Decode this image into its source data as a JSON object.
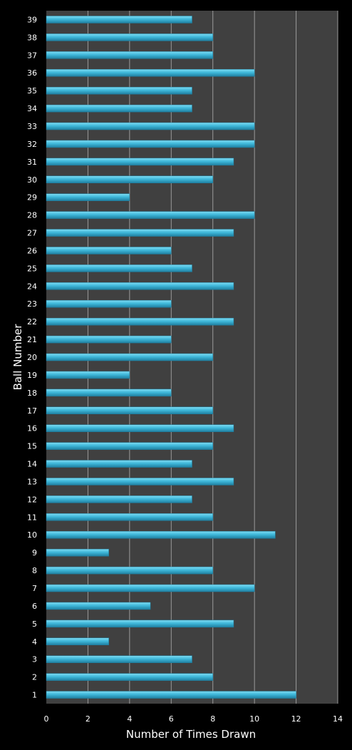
{
  "chart_data": {
    "type": "bar",
    "orientation": "horizontal",
    "title": "",
    "xlabel": "Number of Times Drawn",
    "ylabel": "Ball Number",
    "xlim": [
      0,
      14
    ],
    "xticks": [
      "0",
      "2",
      "4",
      "6",
      "8",
      "10",
      "12",
      "14"
    ],
    "grid": "vertical",
    "legend": "none",
    "categories": [
      "1",
      "2",
      "3",
      "4",
      "5",
      "6",
      "7",
      "8",
      "9",
      "10",
      "11",
      "12",
      "13",
      "14",
      "15",
      "16",
      "17",
      "18",
      "19",
      "20",
      "21",
      "22",
      "23",
      "24",
      "25",
      "26",
      "27",
      "28",
      "29",
      "30",
      "31",
      "32",
      "33",
      "34",
      "35",
      "36",
      "37",
      "38",
      "39"
    ],
    "values": [
      12,
      8,
      7,
      3,
      9,
      5,
      10,
      8,
      3,
      11,
      8,
      7,
      9,
      7,
      8,
      9,
      8,
      6,
      4,
      8,
      6,
      9,
      6,
      9,
      7,
      6,
      9,
      10,
      4,
      8,
      9,
      10,
      10,
      7,
      7,
      10,
      8,
      8,
      7
    ],
    "colors": {
      "background": "#000000",
      "plot_area": "#404040",
      "gridline": "#9a9a9a",
      "bar_light": "#7fdcf3",
      "bar": "#3fb8da",
      "bar_dark": "#1f7fa0",
      "text": "#ffffff"
    }
  }
}
